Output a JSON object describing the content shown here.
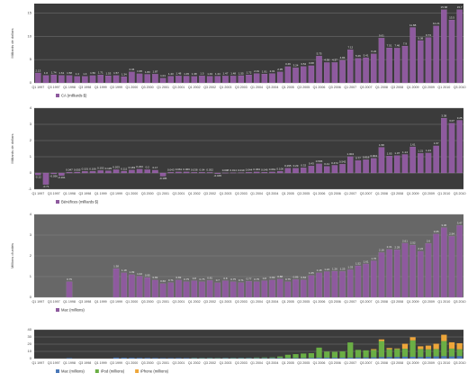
{
  "chart_data": [
    {
      "type": "bar",
      "y_label": "Milliards de dollars",
      "data_labels": true,
      "stacked": false,
      "background": "#3b3b3b",
      "categories": [
        "Q1 1997",
        null,
        "Q3 1997",
        null,
        "Q1 1998",
        null,
        "Q3 1998",
        null,
        "Q1 1999",
        null,
        "Q3 1999",
        null,
        "Q1 2000",
        null,
        "Q3 2000",
        null,
        "Q1 2001",
        null,
        "Q3 2001",
        null,
        "Q1 2002",
        null,
        "Q3 2002",
        null,
        "Q1 2003",
        null,
        "Q3 2003",
        null,
        "Q1 2004",
        null,
        "Q3 2004",
        null,
        "Q1 2005",
        null,
        "Q3 2005",
        null,
        "Q1 2006",
        null,
        "Q3 2006",
        null,
        "Q1 2007",
        null,
        "Q3 2007",
        null,
        "Q1 2008",
        null,
        "Q3 2008",
        null,
        "Q1 2009",
        null,
        "Q3 2009",
        null,
        "Q1 2010",
        null,
        "Q3 2010"
      ],
      "series": [
        {
          "name": "CA (milliards $)",
          "color": "#8e5a9e",
          "values": [
            2.13,
            1.6,
            1.74,
            1.61,
            1.58,
            1.4,
            1.4,
            1.56,
            1.71,
            1.53,
            1.57,
            1.34,
            2.34,
            1.95,
            1.83,
            1.87,
            1.01,
            1.43,
            1.48,
            1.45,
            1.38,
            1.5,
            1.43,
            1.44,
            1.47,
            1.48,
            1.55,
            1.72,
            2.01,
            1.91,
            2.01,
            2.35,
            3.49,
            3.24,
            3.52,
            3.68,
            5.75,
            4.36,
            4.37,
            4.84,
            7.12,
            5.26,
            5.41,
            6.22,
            9.61,
            7.51,
            7.46,
            7.9,
            11.88,
            9.08,
            9.73,
            12.21,
            15.68,
            13.5,
            15.7
          ]
        }
      ],
      "ylim": [
        0,
        17
      ],
      "yticks": [
        0,
        5,
        10,
        15
      ],
      "grid": true
    },
    {
      "type": "bar",
      "y_label": "Milliards de dollars",
      "data_labels": true,
      "stacked": false,
      "background": "#3b3b3b",
      "categories": [
        "Q1 1997",
        null,
        "Q3 1997",
        null,
        "Q1 1998",
        null,
        "Q3 1998",
        null,
        "Q1 1999",
        null,
        "Q3 1999",
        null,
        "Q1 2000",
        null,
        "Q3 2000",
        null,
        "Q1 2001",
        null,
        "Q3 2001",
        null,
        "Q1 2002",
        null,
        "Q3 2002",
        null,
        "Q1 2003",
        null,
        "Q3 2003",
        null,
        "Q1 2004",
        null,
        "Q3 2004",
        null,
        "Q1 2005",
        null,
        "Q3 2005",
        null,
        "Q1 2006",
        null,
        "Q3 2006",
        null,
        "Q1 2007",
        null,
        "Q3 2007",
        null,
        "Q1 2008",
        null,
        "Q3 2008",
        null,
        "Q1 2009",
        null,
        "Q3 2009",
        null,
        "Q1 2010",
        null,
        "Q3 2010"
      ],
      "series": [
        {
          "name": "Bénéfices (milliards $)",
          "color": "#8e5a9e",
          "values": [
            -0.12,
            -0.71,
            -0.056,
            -0.161,
            0.047,
            0.055,
            0.101,
            0.106,
            0.152,
            0.135,
            0.203,
            0.111,
            0.183,
            0.233,
            0.2,
            0.17,
            -0.195,
            0.043,
            0.061,
            0.066,
            0.038,
            0.04,
            0.032,
            -0.045,
            0.008,
            0.014,
            0.019,
            0.044,
            0.063,
            0.046,
            0.061,
            0.106,
            0.295,
            0.29,
            0.32,
            0.43,
            0.565,
            0.41,
            0.472,
            0.542,
            1.004,
            0.77,
            0.818,
            0.904,
            1.58,
            1.05,
            1.07,
            1.14,
            1.61,
            1.21,
            1.23,
            1.67,
            3.38,
            3.07,
            3.25
          ]
        }
      ],
      "ylim": [
        -1,
        4
      ],
      "yticks": [
        -1,
        0,
        1,
        2,
        3,
        4
      ],
      "grid": true
    },
    {
      "type": "bar",
      "y_label": "Millions d'unités",
      "data_labels": true,
      "stacked": false,
      "background": "#676767",
      "categories": [
        "Q1 1997",
        null,
        "Q3 1997",
        null,
        "Q1 1998",
        null,
        "Q3 1998",
        null,
        "Q1 1999",
        null,
        "Q3 1999",
        null,
        "Q1 2000",
        null,
        "Q3 2000",
        null,
        "Q1 2001",
        null,
        "Q3 2001",
        null,
        "Q1 2002",
        null,
        "Q3 2002",
        null,
        "Q1 2003",
        null,
        "Q3 2003",
        null,
        "Q1 2004",
        null,
        "Q3 2004",
        null,
        "Q1 2005",
        null,
        "Q3 2005",
        null,
        "Q1 2006",
        null,
        "Q3 2006",
        null,
        "Q1 2007",
        null,
        "Q3 2007",
        null,
        "Q1 2008",
        null,
        "Q3 2008",
        null,
        "Q1 2009",
        null,
        "Q3 2009",
        null,
        "Q1 2010",
        null,
        "Q3 2010"
      ],
      "series": [
        {
          "name": "Mac (millions)",
          "color": "#8e5a9e",
          "values": [
            null,
            null,
            null,
            null,
            0.75,
            null,
            null,
            null,
            null,
            null,
            1.38,
            1.18,
            1.09,
            1.02,
            0.95,
            0.83,
            0.66,
            0.71,
            0.83,
            0.75,
            0.8,
            0.75,
            0.81,
            0.7,
            0.8,
            0.75,
            0.71,
            0.77,
            0.75,
            0.8,
            0.83,
            0.88,
            0.75,
            0.86,
            0.84,
            1.05,
            1.18,
            1.24,
            1.26,
            1.25,
            1.33,
            1.52,
            1.61,
            1.76,
            2.16,
            2.31,
            2.29,
            2.61,
            2.52,
            2.22,
            2.6,
            3.05,
            3.36,
            2.94,
            3.47
          ]
        }
      ],
      "ylim": [
        0,
        4
      ],
      "yticks": [
        0,
        1,
        2,
        3,
        4
      ],
      "grid": true
    },
    {
      "type": "bar",
      "data_labels": false,
      "stacked": true,
      "background": "#3b3b3b",
      "categories": [
        "Q1 1997",
        null,
        "Q3 1997",
        null,
        "Q1 1998",
        null,
        "Q3 1998",
        null,
        "Q1 1999",
        null,
        "Q3 1999",
        null,
        "Q1 2000",
        null,
        "Q3 2000",
        null,
        "Q1 2001",
        null,
        "Q3 2001",
        null,
        "Q1 2002",
        null,
        "Q3 2002",
        null,
        "Q1 2003",
        null,
        "Q3 2003",
        null,
        "Q1 2004",
        null,
        "Q3 2004",
        null,
        "Q1 2005",
        null,
        "Q3 2005",
        null,
        "Q1 2006",
        null,
        "Q3 2006",
        null,
        "Q1 2007",
        null,
        "Q3 2007",
        null,
        "Q1 2008",
        null,
        "Q3 2008",
        null,
        "Q1 2009",
        null,
        "Q3 2009",
        null,
        "Q1 2010",
        null,
        "Q3 2010"
      ],
      "series": [
        {
          "name": "Mac (millions)",
          "color": "#4a78b8",
          "values": [
            null,
            null,
            null,
            null,
            0.75,
            null,
            null,
            null,
            null,
            null,
            1.38,
            1.18,
            1.09,
            1.02,
            0.95,
            0.83,
            0.66,
            0.71,
            0.83,
            0.75,
            0.8,
            0.75,
            0.81,
            0.7,
            0.8,
            0.75,
            0.71,
            0.77,
            0.75,
            0.8,
            0.83,
            0.88,
            0.75,
            0.86,
            0.84,
            1.05,
            1.18,
            1.24,
            1.26,
            1.25,
            1.33,
            1.52,
            1.61,
            1.76,
            2.16,
            2.31,
            2.29,
            2.61,
            2.52,
            2.22,
            2.6,
            3.05,
            3.36,
            2.94,
            3.47
          ]
        },
        {
          "name": "iPod (millions)",
          "color": "#6aae45",
          "values": [
            null,
            null,
            null,
            null,
            null,
            null,
            null,
            null,
            null,
            null,
            null,
            null,
            null,
            null,
            null,
            null,
            null,
            null,
            null,
            null,
            0.125,
            0.057,
            0.078,
            0.054,
            0.219,
            0.078,
            0.304,
            0.336,
            0.733,
            0.807,
            0.86,
            2.016,
            4.58,
            5.31,
            6.16,
            6.45,
            14.04,
            8.53,
            8.11,
            8.73,
            21.07,
            10.55,
            9.82,
            10.2,
            22.12,
            10.64,
            11.01,
            11.05,
            22.73,
            11.01,
            10.21,
            10.18,
            20.97,
            10.89,
            9.41
          ]
        },
        {
          "name": "iPhone (millions)",
          "color": "#eea63a",
          "values": [
            null,
            null,
            null,
            null,
            null,
            null,
            null,
            null,
            null,
            null,
            null,
            null,
            null,
            null,
            null,
            null,
            null,
            null,
            null,
            null,
            null,
            null,
            null,
            null,
            null,
            null,
            null,
            null,
            null,
            null,
            null,
            null,
            null,
            null,
            null,
            null,
            null,
            null,
            null,
            null,
            null,
            null,
            null,
            1.12,
            2.32,
            1.7,
            0.72,
            6.89,
            4.36,
            3.79,
            5.21,
            7.37,
            8.74,
            8.75,
            8.4
          ]
        }
      ],
      "ylim": [
        0,
        40
      ],
      "yticks": [
        0,
        10,
        20,
        30,
        40
      ],
      "grid": true
    }
  ]
}
